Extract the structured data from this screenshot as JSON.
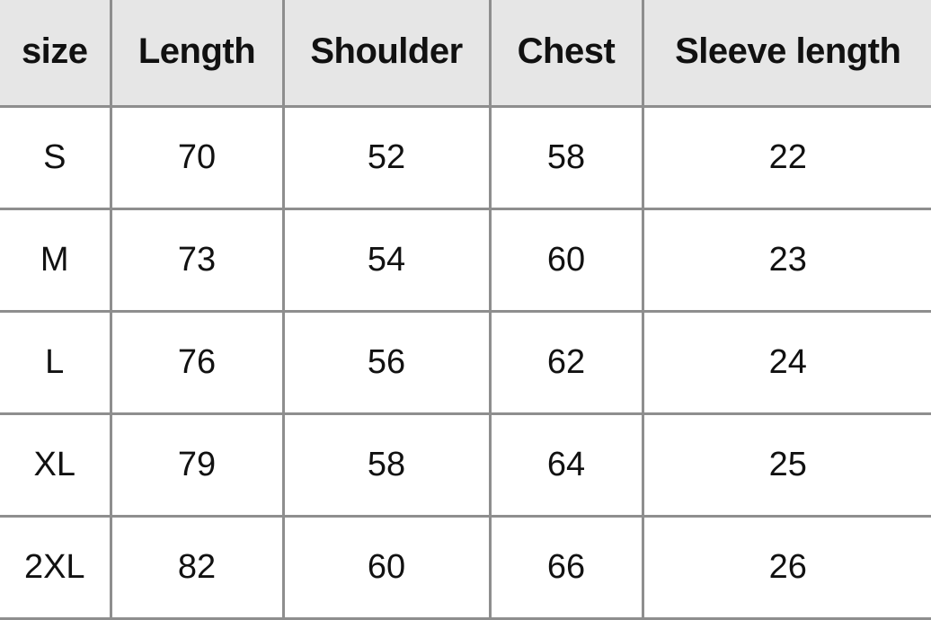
{
  "table": {
    "headers": [
      "size",
      "Length",
      "Shoulder",
      "Chest",
      "Sleeve length"
    ],
    "rows": [
      [
        "S",
        "70",
        "52",
        "58",
        "22"
      ],
      [
        "M",
        "73",
        "54",
        "60",
        "23"
      ],
      [
        "L",
        "76",
        "56",
        "62",
        "24"
      ],
      [
        "XL",
        "79",
        "58",
        "64",
        "25"
      ],
      [
        "2XL",
        "82",
        "60",
        "66",
        "26"
      ]
    ]
  },
  "colors": {
    "header_bg": "#e6e6e6",
    "border": "#8e8e8e",
    "text": "#111111"
  }
}
